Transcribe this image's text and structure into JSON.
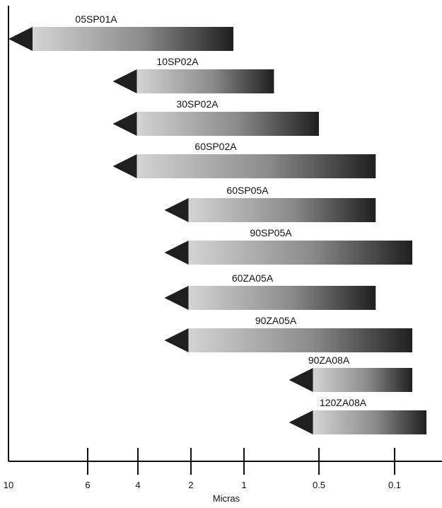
{
  "chart_data": {
    "type": "bar",
    "title": "",
    "xlabel": "Micras",
    "ylabel": "",
    "x_scale": "nonlinear-decreasing",
    "x_ticks": [
      10,
      6,
      4,
      2,
      1,
      0.5,
      0.1
    ],
    "x_tick_labels": [
      "10",
      "6",
      "4",
      "2",
      "1",
      "0.5",
      "0.1"
    ],
    "grid": false,
    "legend": "none",
    "colors": {
      "axis": "#111111",
      "arrow": "#1f1f1f",
      "gradient_start": "#d4d4d4",
      "gradient_mid": "#8b8b8b",
      "gradient_end": "#1f1f1f"
    },
    "categories": [
      "05SP01A",
      "10SP02A",
      "30SP02A",
      "60SP02A",
      "60SP05A",
      "90SP05A",
      "60ZA05A",
      "90ZA05A",
      "90ZA08A",
      "120ZA08A"
    ],
    "ranges": [
      {
        "label": "05SP01A",
        "start": 10,
        "end": 1.2
      },
      {
        "label": "10SP02A",
        "start": 5,
        "end": 0.8
      },
      {
        "label": "30SP02A",
        "start": 5,
        "end": 0.5
      },
      {
        "label": "60SP02A",
        "start": 5,
        "end": 0.2
      },
      {
        "label": "60SP05A",
        "start": 3,
        "end": 0.2
      },
      {
        "label": "90SP05A",
        "start": 3,
        "end": 0.05
      },
      {
        "label": "60ZA05A",
        "start": 3,
        "end": 0.2
      },
      {
        "label": "90ZA05A",
        "start": 3,
        "end": 0.05
      },
      {
        "label": "90ZA08A",
        "start": 0.7,
        "end": 0.05
      },
      {
        "label": "120ZA08A",
        "start": 0.7,
        "end": 0.01
      }
    ]
  }
}
